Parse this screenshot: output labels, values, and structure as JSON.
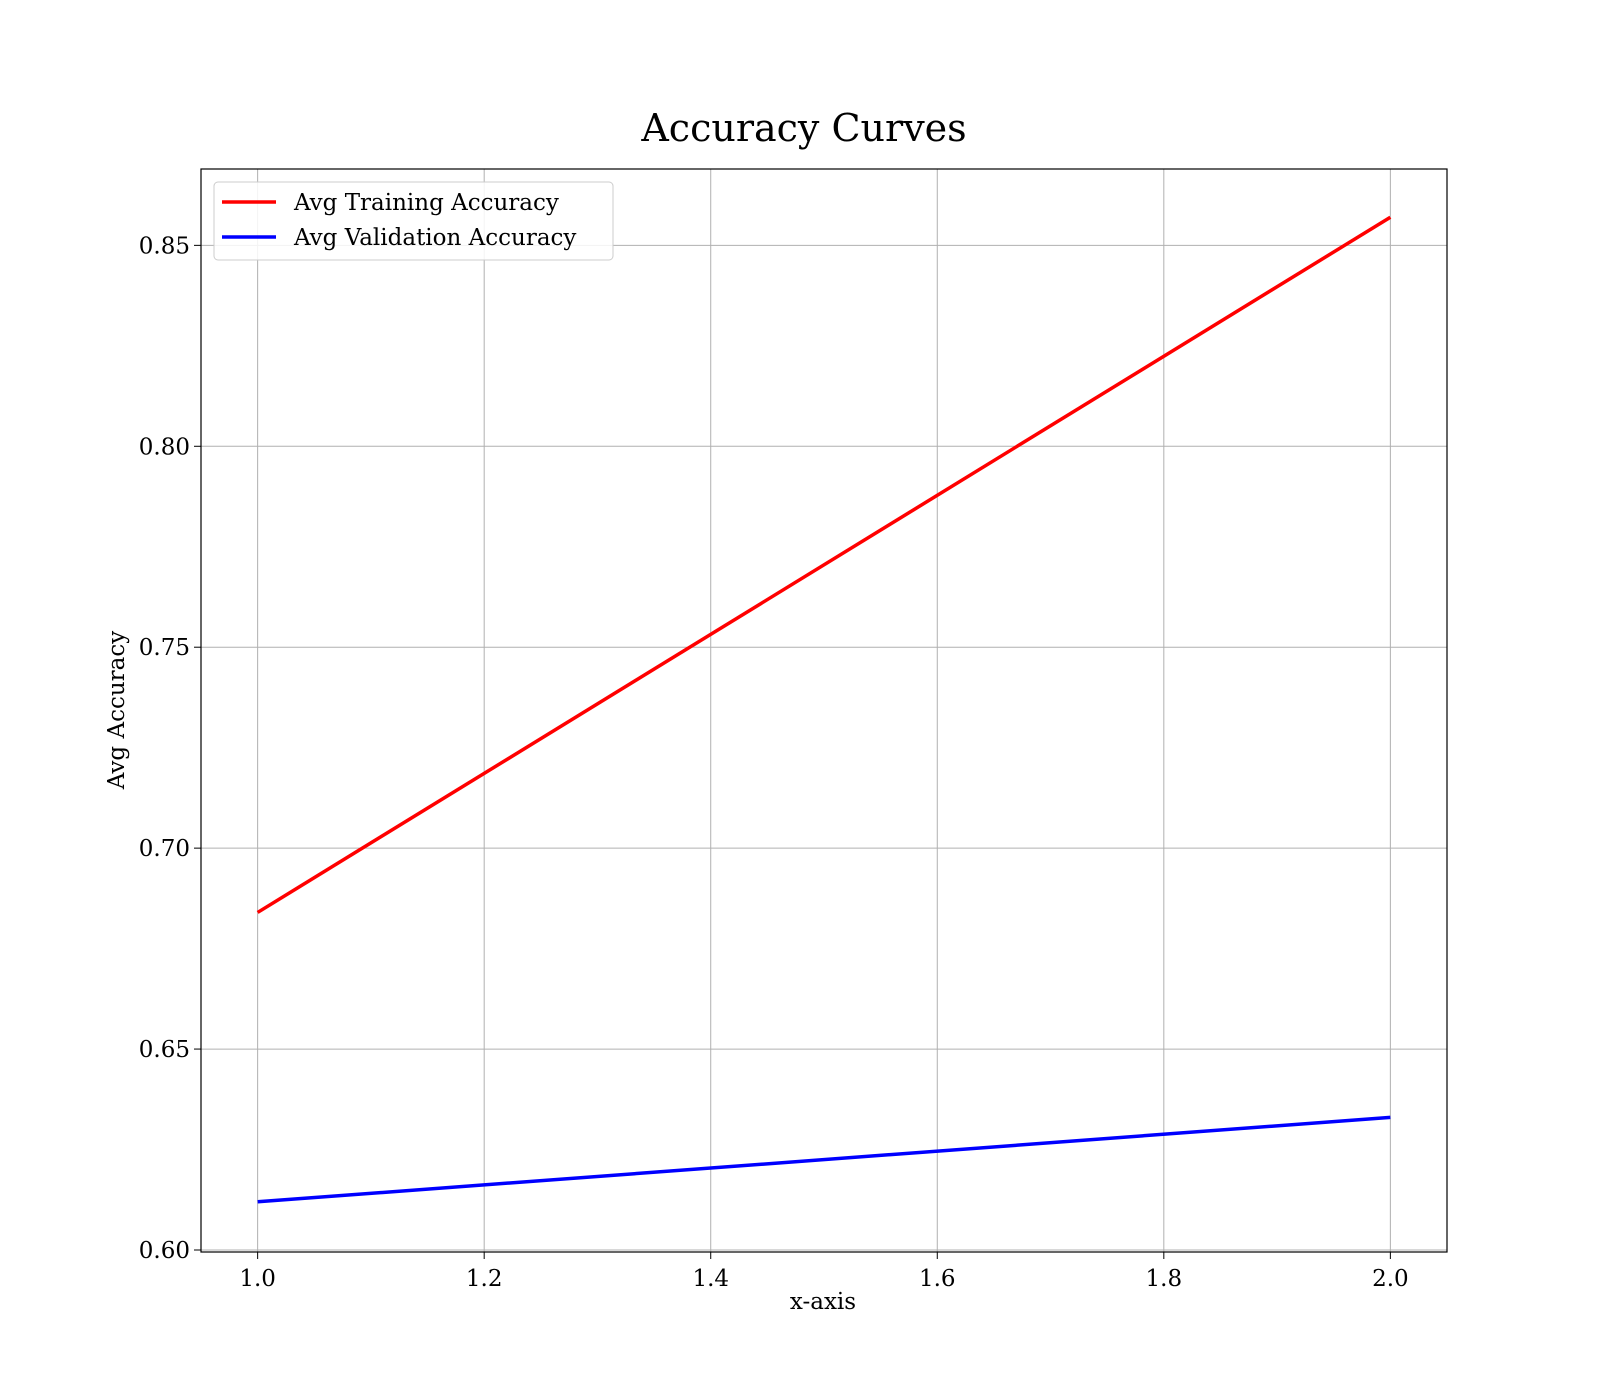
{
  "chart_data": {
    "type": "line",
    "title": "Accuracy Curves",
    "xlabel": "x-axis",
    "ylabel": "Avg Accuracy",
    "xlim": [
      0.95,
      2.05
    ],
    "ylim": [
      0.5995,
      0.869
    ],
    "xticks": [
      1.0,
      1.2,
      1.4,
      1.6,
      1.8,
      2.0
    ],
    "xtick_labels": [
      "1.0",
      "1.2",
      "1.4",
      "1.6",
      "1.8",
      "2.0"
    ],
    "yticks": [
      0.6,
      0.65,
      0.7,
      0.75,
      0.8,
      0.85
    ],
    "ytick_labels": [
      "0.60",
      "0.65",
      "0.70",
      "0.75",
      "0.80",
      "0.85"
    ],
    "grid": true,
    "legend_position": "top-left",
    "x": [
      1.0,
      2.0
    ],
    "series": [
      {
        "name": "Avg Training Accuracy",
        "color": "#ff0000",
        "values": [
          0.684,
          0.857
        ]
      },
      {
        "name": "Avg Validation Accuracy",
        "color": "#0000ff",
        "values": [
          0.612,
          0.633
        ]
      }
    ]
  }
}
